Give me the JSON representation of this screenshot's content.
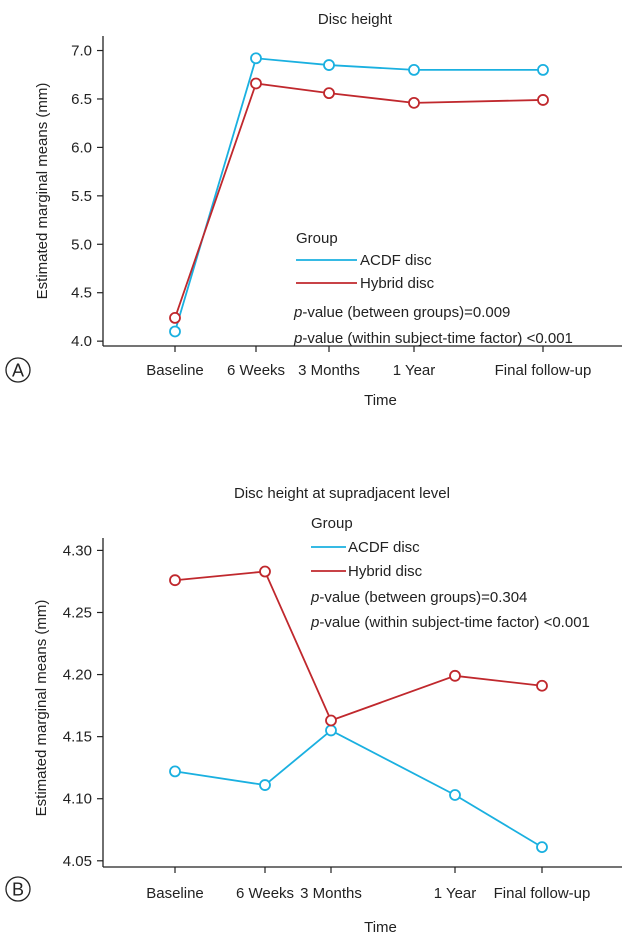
{
  "chart_data": [
    {
      "type": "line",
      "panel_label": "A",
      "title": "Disc height",
      "xlabel": "Time",
      "ylabel": "Estimated marginal means (mm)",
      "categories": [
        "Baseline",
        "6 Weeks",
        "3 Months",
        "1 Year",
        "Final follow-up"
      ],
      "ylim": [
        3.95,
        7.15
      ],
      "yticks": [
        "4.0",
        "4.5",
        "5.0",
        "5.5",
        "6.0",
        "6.5",
        "7.0"
      ],
      "grid": false,
      "legend": {
        "title": "Group",
        "placement": "center-right",
        "notes": [
          {
            "italic": "p",
            "text": "-value (between groups)=0.009"
          },
          {
            "italic": "p",
            "text": "-value (within subject-time factor) <0.001"
          }
        ]
      },
      "series": [
        {
          "name": "ACDF disc",
          "color": "#1ab0e0",
          "values": [
            4.1,
            6.92,
            6.85,
            6.8,
            6.8
          ]
        },
        {
          "name": "Hybrid disc",
          "color": "#c0282d",
          "values": [
            4.24,
            6.66,
            6.56,
            6.46,
            6.49
          ]
        }
      ]
    },
    {
      "type": "line",
      "panel_label": "B",
      "title": "Disc height at supradjacent level",
      "xlabel": "Time",
      "ylabel": "Estimated marginal means (mm)",
      "categories": [
        "Baseline",
        "6 Weeks",
        "3 Months",
        "1 Year",
        "Final follow-up"
      ],
      "ylim": [
        4.045,
        4.31
      ],
      "yticks": [
        "4.05",
        "4.10",
        "4.15",
        "4.20",
        "4.25",
        "4.30"
      ],
      "grid": false,
      "legend": {
        "title": "Group",
        "placement": "top-right",
        "notes": [
          {
            "italic": "p",
            "text": "-value (between groups)=0.304"
          },
          {
            "italic": "p",
            "text": "-value (within subject-time factor) <0.001"
          }
        ]
      },
      "series": [
        {
          "name": "ACDF disc",
          "color": "#1ab0e0",
          "values": [
            4.122,
            4.111,
            4.155,
            4.103,
            4.061
          ]
        },
        {
          "name": "Hybrid disc",
          "color": "#c0282d",
          "values": [
            4.276,
            4.283,
            4.163,
            4.199,
            4.191
          ]
        }
      ]
    }
  ]
}
